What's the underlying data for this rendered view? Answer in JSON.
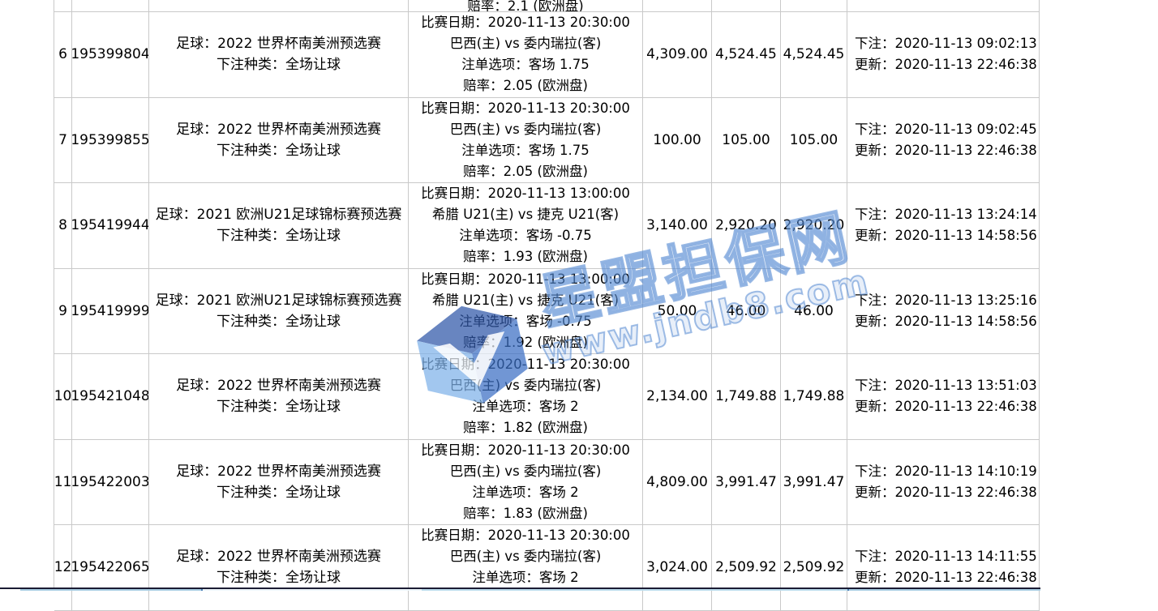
{
  "watermark": {
    "title": "星盟担保网",
    "url": "www.jndb8.com",
    "accent_color": "#5488d2"
  },
  "table": {
    "column_semantics": [
      "row-number",
      "bet-id",
      "league-and-bet-type",
      "match-details",
      "bet-amount",
      "valid-amount",
      "result-amount",
      "bet-and-update-times"
    ],
    "partial_top_row": {
      "odds_line": "赔率：2.1 (欧洲盘)"
    },
    "rows": [
      {
        "num": "6",
        "id": "195399804",
        "league_lines": [
          "足球：2022 世界杯南美洲预选赛",
          "下注种类：全场让球"
        ],
        "match_lines": [
          "比赛日期：2020-11-13 20:30:00",
          "巴西(主) vs 委内瑞拉(客)",
          "注单选项：客场 1.75",
          "赔率：2.05 (欧洲盘)"
        ],
        "amounts": [
          "4,309.00",
          "4,524.45",
          "4,524.45"
        ],
        "time_lines": [
          "下注：2020-11-13 09:02:13",
          "更新：2020-11-13 22:46:38"
        ]
      },
      {
        "num": "7",
        "id": "195399855",
        "league_lines": [
          "足球：2022 世界杯南美洲预选赛",
          "下注种类：全场让球"
        ],
        "match_lines": [
          "比赛日期：2020-11-13 20:30:00",
          "巴西(主) vs 委内瑞拉(客)",
          "注单选项：客场 1.75",
          "赔率：2.05 (欧洲盘)"
        ],
        "amounts": [
          "100.00",
          "105.00",
          "105.00"
        ],
        "time_lines": [
          "下注：2020-11-13 09:02:45",
          "更新：2020-11-13 22:46:38"
        ]
      },
      {
        "num": "8",
        "id": "195419944",
        "league_lines": [
          "足球：2021 欧洲U21足球锦标赛预选赛",
          "下注种类：全场让球"
        ],
        "match_lines": [
          "比赛日期：2020-11-13 13:00:00",
          "希腊 U21(主) vs 捷克 U21(客)",
          "注单选项：客场 -0.75",
          "赔率：1.93 (欧洲盘)"
        ],
        "amounts": [
          "3,140.00",
          "2,920.20",
          "2,920.20"
        ],
        "time_lines": [
          "下注：2020-11-13 13:24:14",
          "更新：2020-11-13 14:58:56"
        ]
      },
      {
        "num": "9",
        "id": "195419999",
        "league_lines": [
          "足球：2021 欧洲U21足球锦标赛预选赛",
          "下注种类：全场让球"
        ],
        "match_lines": [
          "比赛日期：2020-11-13 13:00:00",
          "希腊 U21(主) vs 捷克 U21(客)",
          "注单选项：客场 -0.75",
          "赔率：1.92 (欧洲盘)"
        ],
        "amounts": [
          "50.00",
          "46.00",
          "46.00"
        ],
        "time_lines": [
          "下注：2020-11-13 13:25:16",
          "更新：2020-11-13 14:58:56"
        ]
      },
      {
        "num": "10",
        "id": "195421048",
        "league_lines": [
          "足球：2022 世界杯南美洲预选赛",
          "下注种类：全场让球"
        ],
        "match_lines": [
          "比赛日期：2020-11-13 20:30:00",
          "巴西(主) vs 委内瑞拉(客)",
          "注单选项：客场 2",
          "赔率：1.82 (欧洲盘)"
        ],
        "amounts": [
          "2,134.00",
          "1,749.88",
          "1,749.88"
        ],
        "time_lines": [
          "下注：2020-11-13 13:51:03",
          "更新：2020-11-13 22:46:38"
        ]
      },
      {
        "num": "11",
        "id": "195422003",
        "league_lines": [
          "足球：2022 世界杯南美洲预选赛",
          "下注种类：全场让球"
        ],
        "match_lines": [
          "比赛日期：2020-11-13 20:30:00",
          "巴西(主) vs 委内瑞拉(客)",
          "注单选项：客场 2",
          "赔率：1.83 (欧洲盘)"
        ],
        "amounts": [
          "4,809.00",
          "3,991.47",
          "3,991.47"
        ],
        "time_lines": [
          "下注：2020-11-13 14:10:19",
          "更新：2020-11-13 22:46:38"
        ]
      },
      {
        "num": "12",
        "id": "195422065",
        "league_lines": [
          "足球：2022 世界杯南美洲预选赛",
          "下注种类：全场让球"
        ],
        "match_lines": [
          "比赛日期：2020-11-13 20:30:00",
          "巴西(主) vs 委内瑞拉(客)",
          "注单选项：客场 2",
          ""
        ],
        "amounts": [
          "3,024.00",
          "2,509.92",
          "2,509.92"
        ],
        "time_lines": [
          "下注：2020-11-13 14:11:55",
          "更新：2020-11-13 22:46:38"
        ]
      }
    ]
  }
}
